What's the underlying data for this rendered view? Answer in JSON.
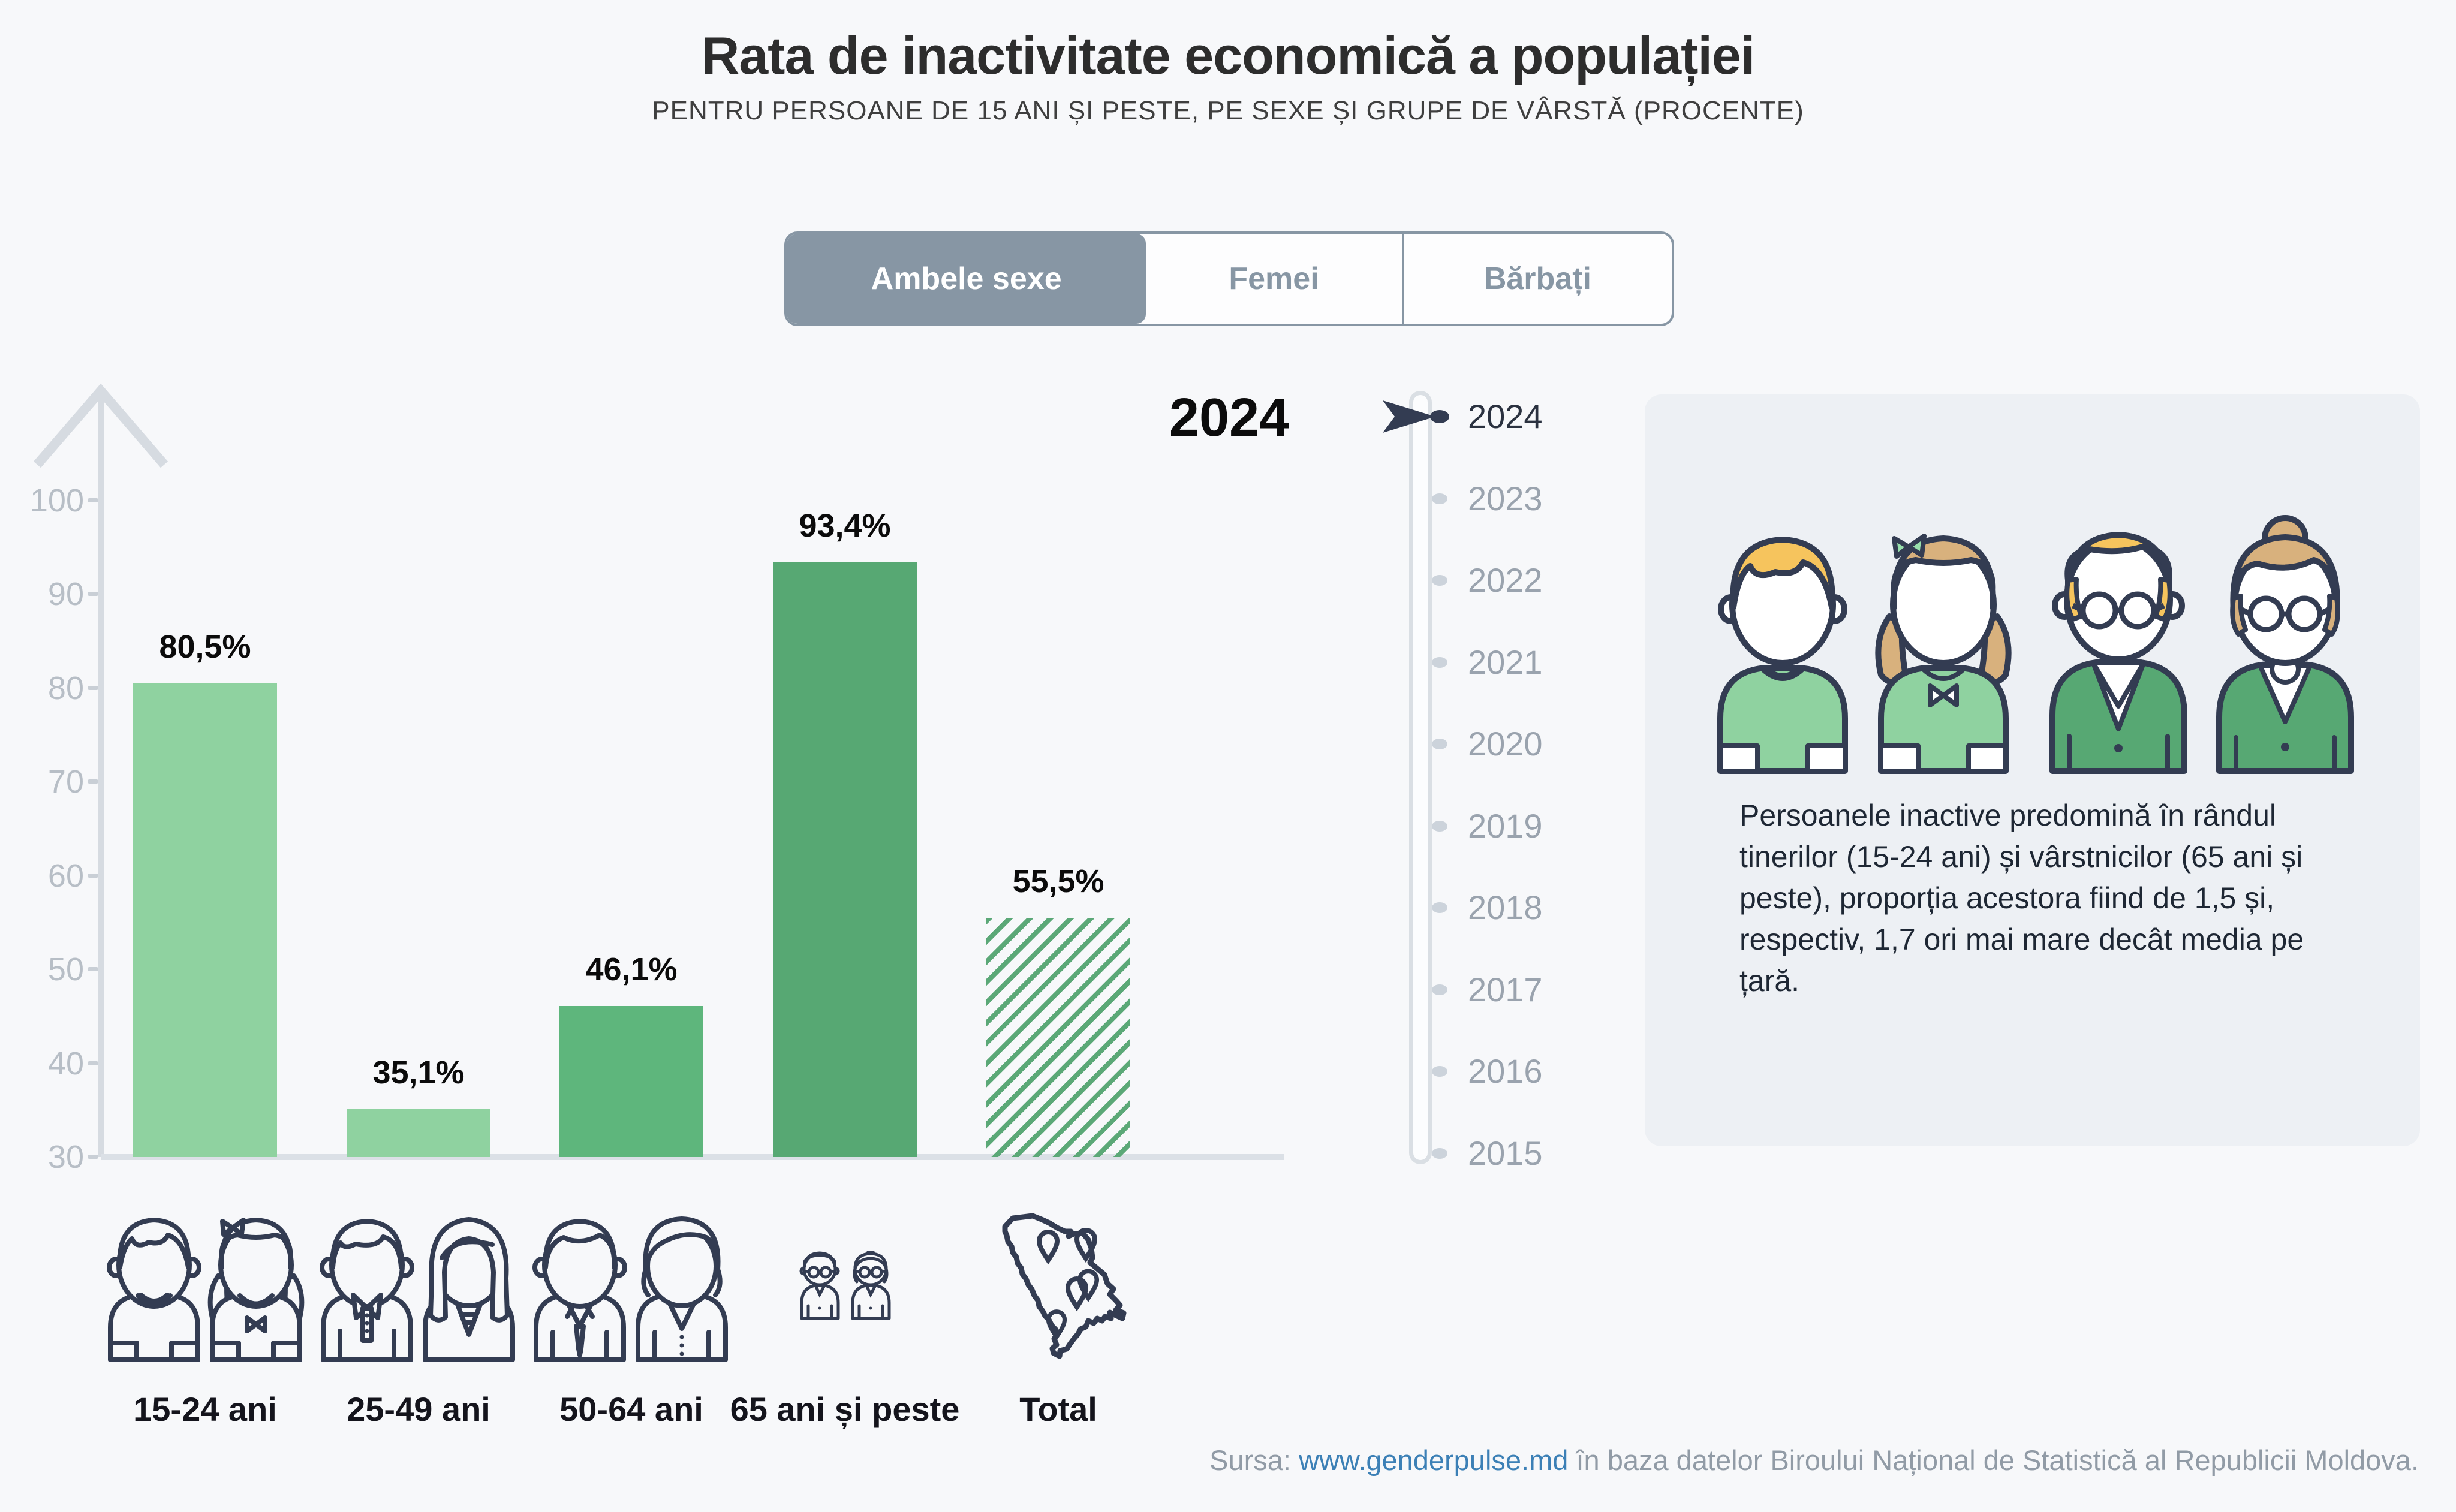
{
  "header": {
    "title": "Rata de inactivitate economică a populației",
    "subtitle": "PENTRU PERSOANE DE 15 ANI ȘI PESTE, PE SEXE ȘI GRUPE DE VÂRSTĂ (PROCENTE)"
  },
  "tabs": [
    {
      "label": "Ambele sexe",
      "selected": true
    },
    {
      "label": "Femei",
      "selected": false
    },
    {
      "label": "Bărbați",
      "selected": false
    }
  ],
  "chart_data": {
    "type": "bar",
    "title": "Rata de inactivitate economică a populației",
    "year_label": "2024",
    "categories": [
      "15-24 ani",
      "25-49 ani",
      "50-64 ani",
      "65 ani și peste",
      "Total"
    ],
    "values": [
      80.5,
      35.1,
      46.1,
      93.4,
      55.5
    ],
    "value_labels": [
      "80,5%",
      "35,1%",
      "46,1%",
      "93,4%",
      "55,5%"
    ],
    "bar_styles": [
      "solid",
      "solid",
      "solid",
      "solid",
      "hatch"
    ],
    "bar_colors": [
      "#8fd2a0",
      "#8fd2a0",
      "#5eb67c",
      "#57a873",
      "#5ba877"
    ],
    "ylim": [
      30,
      100
    ],
    "yticks": [
      30,
      40,
      50,
      60,
      70,
      80,
      90,
      100
    ],
    "grid": false,
    "legend": null,
    "xlabel": "",
    "ylabel": ""
  },
  "timeline": {
    "years": [
      "2024",
      "2023",
      "2022",
      "2021",
      "2020",
      "2019",
      "2018",
      "2017",
      "2016",
      "2015"
    ],
    "selected_year": "2024"
  },
  "info_panel": {
    "text": "Persoanele inactive predomină în rândul tinerilor (15-24 ani) și vârstnicilor (65 ani și peste), proporția acestora fiind de 1,5 și, respectiv, 1,7 ori mai mare decât media pe țară."
  },
  "footer": {
    "prefix": "Sursa: ",
    "link_text": "www.genderpulse.md",
    "suffix": " în baza datelor Biroului Național de Statistică al Republicii Moldova."
  },
  "icons": {
    "y_axis": "up-arrow-icon",
    "timeline_marker": "flag-arrow-icon",
    "axis_groups": [
      "teen-boy-girl-icon",
      "adult-man-woman-icon",
      "senior-man-woman-icon",
      "elderly-couple-icon",
      "moldova-map-icon"
    ],
    "panel_illustration": "family-green-icon"
  },
  "colors": {
    "background": "#f7f8fa",
    "panel_background": "#edf0f4",
    "accent_grayblue": "#8796a4",
    "bar_light_green": "#8fd2a0",
    "bar_mid_green": "#5eb67c",
    "bar_dark_green": "#57a873",
    "axis_gray": "#d6dbe1",
    "tick_text": "#b7bec6",
    "timeline_text": "#9aa3ae",
    "timeline_active_text": "#2b3240",
    "outline_navy": "#333c52",
    "link_blue": "#3c80b6",
    "text_dark": "#1e2734"
  }
}
